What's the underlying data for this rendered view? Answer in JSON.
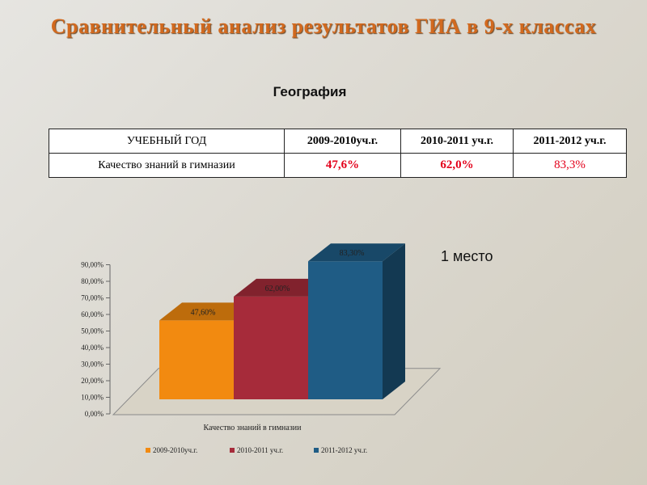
{
  "title": "Сравнительный анализ результатов ГИА в 9-х классах",
  "subject": "География",
  "table": {
    "headers": [
      "УЧЕБНЫЙ ГОД",
      "2009-2010уч.г.",
      "2010-2011 уч.г.",
      "2011-2012 уч.г."
    ],
    "row_label": "Качество знаний в гимназии",
    "values": [
      "47,6%",
      "62,0%",
      "83,3%"
    ]
  },
  "note": "1 место",
  "colors": {
    "title": "#d2691e",
    "table_value": "#e3001b",
    "series": [
      "#f28a10",
      "#a62b3a",
      "#1f5c85"
    ]
  },
  "chart_data": {
    "type": "bar",
    "title": "",
    "categories": [
      "Качество знаний в гимназии"
    ],
    "series": [
      {
        "name": "2009-2010уч.г.",
        "values": [
          47.6
        ],
        "label": "47,60%"
      },
      {
        "name": "2010-2011 уч.г.",
        "values": [
          62.0
        ],
        "label": "62,00%"
      },
      {
        "name": "2011-2012 уч.г.",
        "values": [
          83.3
        ],
        "label": "83,30%"
      }
    ],
    "y_ticks": [
      "0,00%",
      "10,00%",
      "20,00%",
      "30,00%",
      "40,00%",
      "50,00%",
      "60,00%",
      "70,00%",
      "80,00%",
      "90,00%"
    ],
    "ylim": [
      0,
      90
    ],
    "xlabel": "",
    "ylabel": "",
    "grid": false,
    "legend_position": "bottom",
    "three_d": true
  }
}
